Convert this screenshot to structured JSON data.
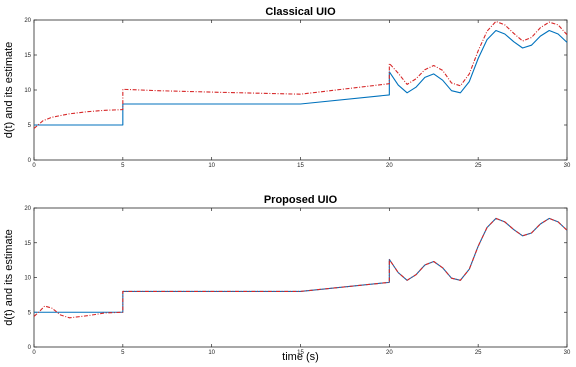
{
  "chart_data": [
    {
      "type": "line",
      "title": "Classical UIO",
      "xlabel": "",
      "ylabel": "d(t) and its estimate",
      "xlim": [
        0,
        30
      ],
      "ylim": [
        0,
        20
      ],
      "xticks": [
        "0",
        "5",
        "10",
        "15",
        "20",
        "25",
        "30"
      ],
      "yticks": [
        "0",
        "5",
        "10",
        "15",
        "20"
      ],
      "grid": false,
      "series": [
        {
          "style": "solid",
          "color": "#0072BD",
          "x": [
            0,
            5,
            5,
            15,
            20,
            20,
            20.5,
            21,
            21.5,
            22,
            22.5,
            23,
            23.5,
            24,
            24.5,
            25,
            25.5,
            26,
            26.5,
            27,
            27.5,
            28,
            28.5,
            29,
            29.5,
            30
          ],
          "y": [
            5,
            5,
            8,
            8,
            9.3,
            12.6,
            10.7,
            9.6,
            10.4,
            11.8,
            12.3,
            11.4,
            9.9,
            9.6,
            11.2,
            14.5,
            17.2,
            18.5,
            18.0,
            16.9,
            16.0,
            16.4,
            17.7,
            18.5,
            18.0,
            16.8
          ]
        },
        {
          "style": "dashdot",
          "color": "#D62728",
          "x": [
            0,
            0.5,
            1,
            2,
            3,
            4,
            5,
            5,
            7,
            10,
            15,
            20,
            20,
            20.5,
            21,
            21.5,
            22,
            22.5,
            23,
            23.5,
            24,
            24.5,
            25,
            25.5,
            26,
            26.5,
            27,
            27.5,
            28,
            28.5,
            29,
            29.5,
            30
          ],
          "y": [
            4.5,
            5.6,
            6.1,
            6.6,
            6.9,
            7.1,
            7.2,
            10.1,
            9.9,
            9.7,
            9.4,
            10.9,
            13.8,
            12.4,
            10.8,
            11.6,
            12.9,
            13.5,
            12.8,
            11.0,
            10.6,
            12.3,
            15.6,
            18.4,
            19.8,
            19.3,
            18.1,
            17.0,
            17.5,
            18.9,
            19.7,
            19.3,
            17.9
          ]
        }
      ]
    },
    {
      "type": "line",
      "title": "Proposed UIO",
      "xlabel": "time (s)",
      "ylabel": "d(t) and its estimate",
      "xlim": [
        0,
        30
      ],
      "ylim": [
        0,
        20
      ],
      "xticks": [
        "0",
        "5",
        "10",
        "15",
        "20",
        "25",
        "30"
      ],
      "yticks": [
        "0",
        "5",
        "10",
        "15",
        "20"
      ],
      "grid": false,
      "series": [
        {
          "style": "solid",
          "color": "#0072BD",
          "x": [
            0,
            5,
            5,
            15,
            20,
            20,
            20.5,
            21,
            21.5,
            22,
            22.5,
            23,
            23.5,
            24,
            24.5,
            25,
            25.5,
            26,
            26.5,
            27,
            27.5,
            28,
            28.5,
            29,
            29.5,
            30
          ],
          "y": [
            5,
            5,
            8,
            8,
            9.3,
            12.6,
            10.7,
            9.6,
            10.4,
            11.8,
            12.3,
            11.4,
            9.9,
            9.6,
            11.2,
            14.5,
            17.2,
            18.5,
            18.0,
            16.9,
            16.0,
            16.4,
            17.7,
            18.5,
            18.0,
            16.8
          ]
        },
        {
          "style": "dashdot",
          "color": "#D62728",
          "x": [
            0,
            0.3,
            0.6,
            1.0,
            1.5,
            2.0,
            3.0,
            4.0,
            5,
            5,
            15,
            20,
            20,
            20.5,
            21,
            21.5,
            22,
            22.5,
            23,
            23.5,
            24,
            24.5,
            25,
            25.5,
            26,
            26.5,
            27,
            27.5,
            28,
            28.5,
            29,
            29.5,
            30
          ],
          "y": [
            4.4,
            5.1,
            5.9,
            5.6,
            4.6,
            4.2,
            4.5,
            4.9,
            5.0,
            8.0,
            8.0,
            9.3,
            12.6,
            10.7,
            9.6,
            10.4,
            11.8,
            12.3,
            11.4,
            9.9,
            9.6,
            11.2,
            14.5,
            17.2,
            18.5,
            18.0,
            16.9,
            16.0,
            16.4,
            17.7,
            18.5,
            18.0,
            16.8
          ]
        }
      ]
    }
  ]
}
